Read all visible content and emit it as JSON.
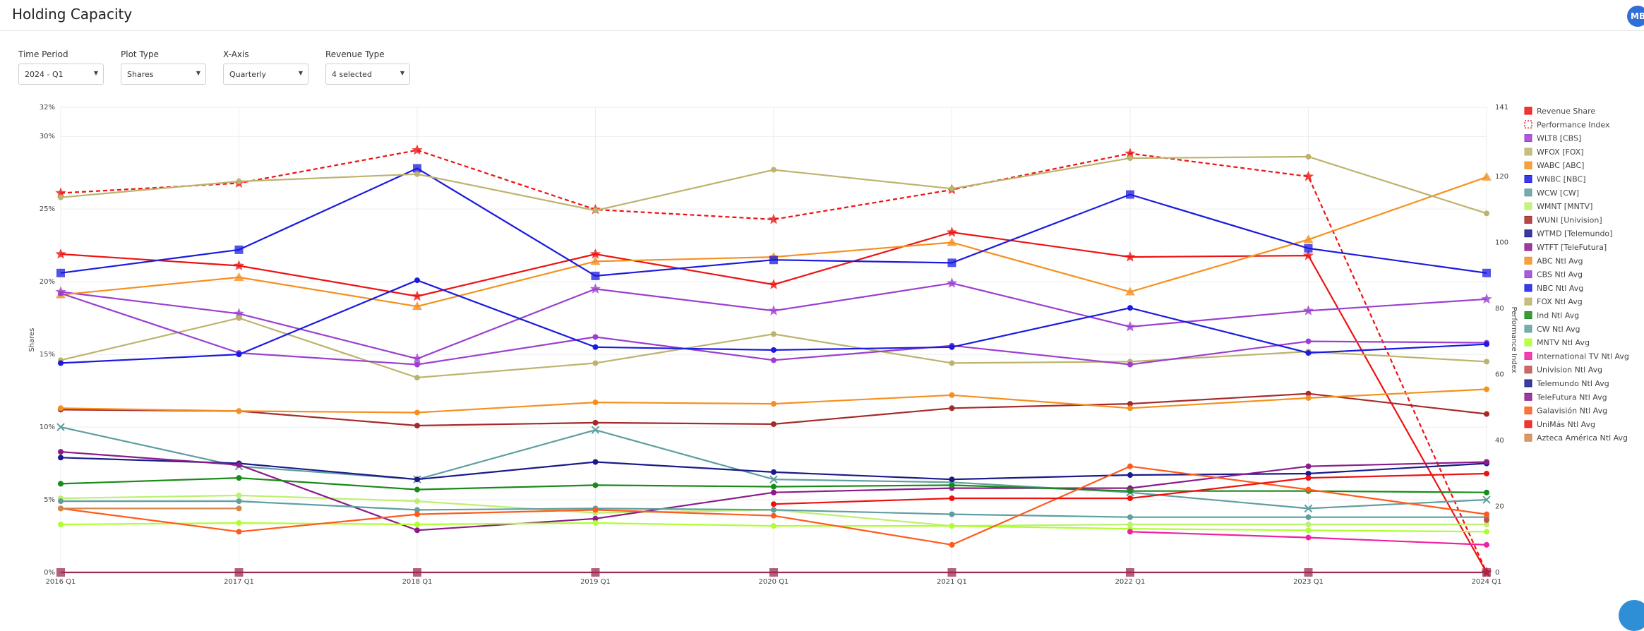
{
  "header": {
    "title": "Holding Capacity",
    "avatar_initials": "MB"
  },
  "filters": [
    {
      "label": "Time Period",
      "value": "2024 - Q1"
    },
    {
      "label": "Plot Type",
      "value": "Shares"
    },
    {
      "label": "X-Axis",
      "value": "Quarterly"
    },
    {
      "label": "Revenue Type",
      "value": "4 selected"
    }
  ],
  "chart_data": {
    "type": "line",
    "ylabel": "Shares",
    "y2label": "Performance Index",
    "categories": [
      "2016 Q1",
      "2017 Q1",
      "2018 Q1",
      "2019 Q1",
      "2020 Q1",
      "2021 Q1",
      "2022 Q1",
      "2023 Q1",
      "2024 Q1"
    ],
    "ylim": [
      0,
      32
    ],
    "yticks": [
      "0%",
      "5%",
      "10%",
      "15%",
      "20%",
      "25%",
      "30%",
      "32%"
    ],
    "ytick_values": [
      0,
      5,
      10,
      15,
      20,
      25,
      30,
      32
    ],
    "y2lim": [
      0,
      141
    ],
    "y2ticks": [
      0,
      20,
      40,
      60,
      80,
      100,
      120,
      141
    ],
    "legend_position": "right",
    "grid": true,
    "series": [
      {
        "name": "Revenue Share",
        "axis": "left",
        "color": "#ee1111",
        "marker": "star",
        "dash": false,
        "values": [
          21.9,
          21.1,
          19.0,
          21.9,
          19.8,
          23.4,
          21.7,
          21.8,
          0
        ]
      },
      {
        "name": "Performance Index",
        "axis": "right",
        "color": "#ee1111",
        "marker": "star",
        "dash": true,
        "values": [
          115,
          118,
          128,
          110,
          107,
          116,
          127,
          120,
          0
        ]
      },
      {
        "name": "WLT8 [CBS]",
        "axis": "left",
        "color": "#9b3fd0",
        "marker": "star",
        "dash": false,
        "values": [
          19.3,
          17.8,
          14.7,
          19.5,
          18.0,
          19.9,
          16.9,
          18.0,
          18.8
        ]
      },
      {
        "name": "WFOX [FOX]",
        "axis": "left",
        "color": "#bdb36d",
        "marker": "circle",
        "dash": false,
        "values": [
          14.6,
          17.5,
          13.4,
          14.4,
          16.4,
          14.4,
          14.5,
          15.2,
          14.5
        ]
      },
      {
        "name": "WABC [ABC]",
        "axis": "left",
        "color": "#f5901e",
        "marker": "triangle",
        "dash": false,
        "values": [
          19.1,
          20.3,
          18.3,
          21.4,
          21.7,
          22.7,
          19.3,
          22.9,
          27.2
        ]
      },
      {
        "name": "WNBC [NBC]",
        "axis": "left",
        "color": "#1a1ae0",
        "marker": "square",
        "dash": false,
        "values": [
          20.6,
          22.2,
          27.8,
          20.4,
          21.5,
          21.3,
          26.0,
          22.3,
          20.6
        ]
      },
      {
        "name": "WCW [CW]",
        "axis": "left",
        "color": "#5f9ea0",
        "marker": "x",
        "dash": false,
        "values": [
          10.0,
          7.3,
          6.4,
          9.8,
          6.4,
          6.2,
          5.5,
          4.4,
          5.0
        ]
      },
      {
        "name": "WMNT [MNTV]",
        "axis": "left",
        "color": "#bdf06d",
        "marker": "circle",
        "dash": false,
        "values": [
          5.1,
          5.3,
          4.9,
          4.1,
          4.3,
          3.2,
          3.3,
          3.3,
          3.3
        ]
      },
      {
        "name": "WUNI [Univision]",
        "axis": "left",
        "color": "#a52a2a",
        "marker": "circle",
        "dash": false,
        "values": [
          11.2,
          11.1,
          10.1,
          10.3,
          10.2,
          11.3,
          11.6,
          12.3,
          10.9
        ]
      },
      {
        "name": "WTMD [Telemundo]",
        "axis": "left",
        "color": "#1a1a8a",
        "marker": "circle",
        "dash": false,
        "values": [
          7.9,
          7.5,
          6.4,
          7.6,
          6.9,
          6.4,
          6.7,
          6.8,
          7.5
        ]
      },
      {
        "name": "WTFT [TeleFutura]",
        "axis": "left",
        "color": "#8b1a8b",
        "marker": "circle",
        "dash": false,
        "values": [
          8.3,
          7.4,
          2.9,
          3.7,
          5.5,
          5.8,
          5.8,
          7.3,
          7.6
        ]
      },
      {
        "name": "ABC Ntl Avg",
        "axis": "left",
        "color": "#f5901e",
        "marker": "circle",
        "dash": false,
        "values": [
          11.3,
          11.1,
          11.0,
          11.7,
          11.6,
          12.2,
          11.3,
          12.0,
          12.6
        ]
      },
      {
        "name": "CBS Ntl Avg",
        "axis": "left",
        "color": "#9b3fd0",
        "marker": "circle",
        "dash": false,
        "values": [
          19.2,
          15.1,
          14.3,
          16.2,
          14.6,
          15.6,
          14.3,
          15.9,
          15.8
        ]
      },
      {
        "name": "NBC Ntl Avg",
        "axis": "left",
        "color": "#1a1ae0",
        "marker": "circle",
        "dash": false,
        "values": [
          14.4,
          15.0,
          20.1,
          15.5,
          15.3,
          15.5,
          18.2,
          15.1,
          15.7
        ]
      },
      {
        "name": "FOX Ntl Avg",
        "axis": "left",
        "color": "#bdb36d",
        "marker": "circle",
        "dash": false,
        "values": [
          25.8,
          26.9,
          27.4,
          24.9,
          27.7,
          26.4,
          28.5,
          28.6,
          24.7
        ]
      },
      {
        "name": "Ind Ntl Avg",
        "axis": "left",
        "color": "#1a8a1a",
        "marker": "circle",
        "dash": false,
        "values": [
          6.1,
          6.5,
          5.7,
          6.0,
          5.9,
          6.0,
          5.6,
          5.6,
          5.5
        ]
      },
      {
        "name": "CW Ntl Avg",
        "axis": "left",
        "color": "#5f9ea0",
        "marker": "circle",
        "dash": false,
        "values": [
          4.9,
          4.9,
          4.3,
          4.4,
          4.3,
          4.0,
          3.8,
          3.8,
          3.8
        ]
      },
      {
        "name": "MNTV Ntl Avg",
        "axis": "left",
        "color": "#adff2f",
        "marker": "circle",
        "dash": false,
        "values": [
          3.3,
          3.4,
          3.3,
          3.4,
          3.2,
          3.2,
          3.0,
          2.9,
          2.8
        ]
      },
      {
        "name": "International TV Ntl Avg",
        "axis": "left",
        "color": "#f020a0",
        "marker": "circle",
        "dash": false,
        "values": [
          null,
          null,
          null,
          null,
          null,
          null,
          2.8,
          2.4,
          1.9
        ]
      },
      {
        "name": "Univision Ntl Avg",
        "axis": "left",
        "color": "#c0504d",
        "marker": "circle",
        "dash": false,
        "values": [
          null,
          null,
          null,
          null,
          null,
          null,
          null,
          null,
          3.6
        ]
      },
      {
        "name": "Telemundo Ntl Avg",
        "axis": "left",
        "color": "#1a1a8a",
        "marker": "circle",
        "dash": false,
        "values": [
          null,
          null,
          null,
          null,
          null,
          null,
          null,
          null,
          7.5
        ]
      },
      {
        "name": "TeleFutura Ntl Avg",
        "axis": "left",
        "color": "#8b1a8b",
        "marker": "circle",
        "dash": false,
        "values": [
          null,
          null,
          null,
          null,
          null,
          null,
          null,
          null,
          7.6
        ]
      },
      {
        "name": "Galavisión Ntl Avg",
        "axis": "left",
        "color": "#ff5a1a",
        "marker": "circle",
        "dash": false,
        "values": [
          4.4,
          2.8,
          4.0,
          4.3,
          3.9,
          1.9,
          7.3,
          5.7,
          4.0
        ]
      },
      {
        "name": "UniMás Ntl Avg",
        "axis": "left",
        "color": "#ee1111",
        "marker": "circle",
        "dash": false,
        "values": [
          null,
          null,
          null,
          null,
          4.7,
          5.1,
          5.1,
          6.5,
          6.8
        ]
      },
      {
        "name": "Azteca América Ntl Avg",
        "axis": "left",
        "color": "#d2874a",
        "marker": "circle",
        "dash": false,
        "values": [
          4.4,
          4.4,
          null,
          null,
          null,
          null,
          null,
          null,
          null
        ]
      },
      {
        "name": "",
        "axis": "left",
        "color": "#9b2a50",
        "marker": "square",
        "dash": false,
        "values": [
          0,
          0,
          0,
          0,
          0,
          0,
          0,
          0,
          0
        ]
      }
    ]
  }
}
